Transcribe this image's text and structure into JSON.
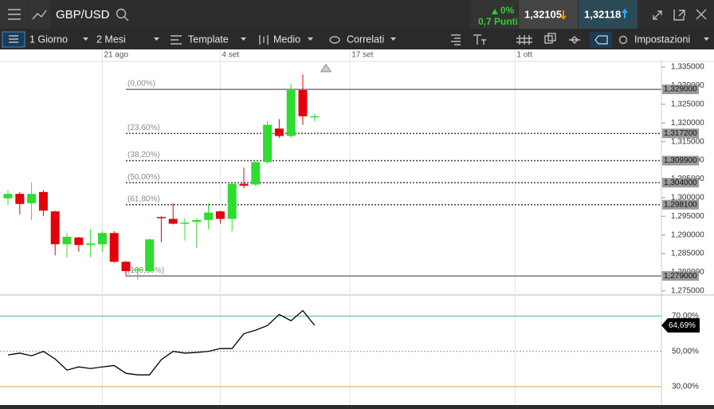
{
  "toolbar": {
    "symbol": "GBP/USD",
    "change_pct": "0%",
    "change_pts": "0,7 Punti",
    "bid": "1,32105",
    "ask": "1,32118"
  },
  "menu": {
    "interval": "1 Giorno",
    "range": "2 Mesi",
    "template": "Template",
    "average": "Medio",
    "compare": "Correlati",
    "settings": "Impostazioni"
  },
  "chart_data": [
    {
      "type": "candlestick",
      "up_color": "#2fdc2f",
      "down_color": "#e3000b",
      "categories": [
        null,
        null,
        null,
        null,
        null,
        null,
        null,
        null,
        "21 ago",
        null,
        null,
        null,
        null,
        null,
        null,
        null,
        null,
        null,
        "4 set",
        null,
        null,
        null,
        null,
        null,
        null,
        null,
        null,
        null,
        null,
        "17 set",
        null,
        null,
        null,
        null,
        null,
        null,
        null,
        null,
        null,
        null,
        null,
        null,
        null,
        "1 ott",
        null,
        null,
        null,
        null,
        null,
        null,
        null,
        null,
        null,
        null,
        null,
        null
      ],
      "open": [
        1.2998,
        1.301,
        1.2985,
        1.3015,
        1.2963,
        1.2875,
        1.2893,
        1.2873,
        1.2875,
        1.2905,
        1.2828,
        1.2805,
        1.2803,
        1.2948,
        1.2943,
        1.293,
        1.2935,
        1.294,
        1.2963,
        1.2943,
        1.3037,
        1.3035,
        1.3095,
        1.3185,
        1.3165,
        1.3288,
        1.3215,
        null,
        null,
        null,
        null,
        null,
        null,
        null,
        null,
        null,
        null,
        null,
        null,
        null,
        null,
        null,
        null,
        null,
        null,
        null,
        null,
        null,
        null,
        null,
        null,
        null,
        null,
        null,
        null,
        null
      ],
      "high": [
        1.302,
        1.3015,
        1.304,
        1.302,
        1.2965,
        1.2905,
        1.2895,
        1.2915,
        1.291,
        1.291,
        1.283,
        1.2815,
        1.289,
        1.295,
        1.2985,
        1.2945,
        1.2945,
        1.2985,
        1.2965,
        1.304,
        1.308,
        1.3098,
        1.3205,
        1.321,
        1.3305,
        1.333,
        1.3225,
        null,
        null,
        null,
        null,
        null,
        null,
        null,
        null,
        null,
        null,
        null,
        null,
        null,
        null,
        null,
        null,
        null,
        null,
        null,
        null,
        null,
        null,
        null,
        null,
        null,
        null,
        null,
        null,
        null
      ],
      "low": [
        1.298,
        1.2955,
        1.294,
        1.295,
        1.2845,
        1.284,
        1.2855,
        1.284,
        1.2855,
        1.2825,
        1.279,
        1.278,
        1.28,
        1.288,
        1.2928,
        1.2885,
        1.2865,
        1.2915,
        1.293,
        1.291,
        1.3025,
        1.303,
        1.309,
        1.316,
        1.316,
        1.3195,
        1.3205,
        null,
        null,
        null,
        null,
        null,
        null,
        null,
        null,
        null,
        null,
        null,
        null,
        null,
        null,
        null,
        null,
        null,
        null,
        null,
        null,
        null,
        null,
        null,
        null,
        null,
        null,
        null,
        null,
        null
      ],
      "close": [
        1.301,
        1.2983,
        1.301,
        1.2965,
        1.2875,
        1.2895,
        1.2873,
        1.2877,
        1.2905,
        1.2828,
        1.2803,
        1.2808,
        1.2888,
        1.2945,
        1.293,
        1.2933,
        1.294,
        1.296,
        1.2943,
        1.3037,
        1.3032,
        1.3095,
        1.3195,
        1.3165,
        1.329,
        1.3218,
        1.3218,
        null,
        null,
        null,
        null,
        null,
        null,
        null,
        null,
        null,
        null,
        null,
        null,
        null,
        null,
        null,
        null,
        null,
        null,
        null,
        null,
        null,
        null,
        null,
        null,
        null,
        null,
        null,
        null,
        null
      ],
      "ylim": [
        1.2739,
        1.3365
      ],
      "yticks": [
        {
          "value": 1.275,
          "label": "1,275000"
        },
        {
          "value": 1.28,
          "label": "1,280000"
        },
        {
          "value": 1.285,
          "label": "1,285000"
        },
        {
          "value": 1.29,
          "label": "1,290000"
        },
        {
          "value": 1.295,
          "label": "1,295000"
        },
        {
          "value": 1.3,
          "label": "1,300000"
        },
        {
          "value": 1.305,
          "label": "1,305000"
        },
        {
          "value": 1.31,
          "label": "1,310000"
        },
        {
          "value": 1.315,
          "label": "1,315000"
        },
        {
          "value": 1.32,
          "label": "1,320000"
        },
        {
          "value": 1.325,
          "label": "1,325000"
        },
        {
          "value": 1.33,
          "label": "1,330000"
        },
        {
          "value": 1.335,
          "label": "1,335000"
        }
      ],
      "fibonacci": [
        {
          "label": "(0,00%)",
          "value": 1.329,
          "value_label": "1,329000"
        },
        {
          "label": "(23,60%)",
          "value": 1.3172,
          "value_label": "1,317200"
        },
        {
          "label": "(38,20%)",
          "value": 1.3099,
          "value_label": "1,309900"
        },
        {
          "label": "(50,00%)",
          "value": 1.304,
          "value_label": "1,304000"
        },
        {
          "label": "(61,80%)",
          "value": 1.2981,
          "value_label": "1,298100"
        },
        {
          "label": "(100,00%)",
          "value": 1.279,
          "value_label": "1,279000"
        }
      ]
    },
    {
      "type": "line",
      "color": "#000000",
      "values": [
        48,
        49,
        47.5,
        50,
        45.7,
        39.4,
        41.2,
        40.3,
        41.2,
        42,
        37.6,
        36.7,
        36.7,
        45.3,
        50,
        49,
        49.4,
        50,
        51.6,
        51.6,
        60,
        62,
        64.6,
        70.9,
        67.3,
        73.1,
        64.69
      ],
      "value_labels": [
        null,
        null,
        null,
        null,
        null,
        null,
        null,
        null,
        null,
        null,
        null,
        null,
        null,
        null,
        null,
        null,
        null,
        null,
        null,
        null,
        null,
        null,
        null,
        null,
        null,
        null,
        "64,69%"
      ],
      "ylim": [
        21,
        81
      ],
      "yticks": [
        {
          "value": 30,
          "label": "30,00%"
        },
        {
          "value": 50,
          "label": "50,00%"
        },
        {
          "value": 70,
          "label": "70,00%"
        }
      ],
      "tick_colors": [
        "#f0a040",
        "#999999",
        "#3cb3b3"
      ]
    }
  ]
}
